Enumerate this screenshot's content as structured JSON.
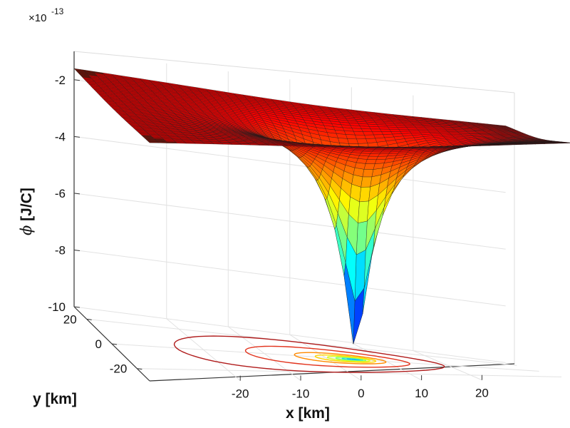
{
  "chart_data": {
    "type": "surface",
    "title": "",
    "exponent_label": "×10",
    "exponent_power": "-13",
    "zlabel_symbol": "ϕ",
    "zlabel_unit": " [J/C]",
    "xlabel": "x [km]",
    "ylabel": "y [km]",
    "xlim": [
      -35,
      35
    ],
    "ylim": [
      -30,
      30
    ],
    "zlim": [
      -10,
      -1
    ],
    "grid": true,
    "colormap": "jet",
    "z_ticks": [
      {
        "value": -10,
        "label": "-10"
      },
      {
        "value": -8,
        "label": "-8"
      },
      {
        "value": -6,
        "label": "-6"
      },
      {
        "value": -4,
        "label": "-4"
      },
      {
        "value": -2,
        "label": "-2"
      }
    ],
    "x_ticks": [
      {
        "value": -20,
        "label": "-20"
      },
      {
        "value": -10,
        "label": "-10"
      },
      {
        "value": 0,
        "label": "0"
      },
      {
        "value": 10,
        "label": "10"
      },
      {
        "value": 20,
        "label": "20"
      }
    ],
    "y_ticks": [
      {
        "value": 20,
        "label": "20"
      },
      {
        "value": 0,
        "label": "0"
      },
      {
        "value": -20,
        "label": "-20"
      }
    ],
    "surface": {
      "function": "potential well, phi ≈ -1.0e-13 · (ρ/(1+ρ)) ... point-mass like",
      "center_x_km": 5,
      "center_y_km": 0,
      "far_field_value": -1.5,
      "min_value": -10
    },
    "contour_rings": [
      {
        "level": -9.5,
        "color": "#1f3cff"
      },
      {
        "level": -8.5,
        "color": "#1aa7ff"
      },
      {
        "level": -7.5,
        "color": "#23e6d6"
      },
      {
        "level": -6.5,
        "color": "#7dff7a"
      },
      {
        "level": -5.5,
        "color": "#d7ff26"
      },
      {
        "level": -4.5,
        "color": "#ffd400"
      },
      {
        "level": -3.5,
        "color": "#ff8a00"
      },
      {
        "level": -2.5,
        "color": "#e2341e"
      },
      {
        "level": -2.0,
        "color": "#b01c1c"
      }
    ]
  }
}
